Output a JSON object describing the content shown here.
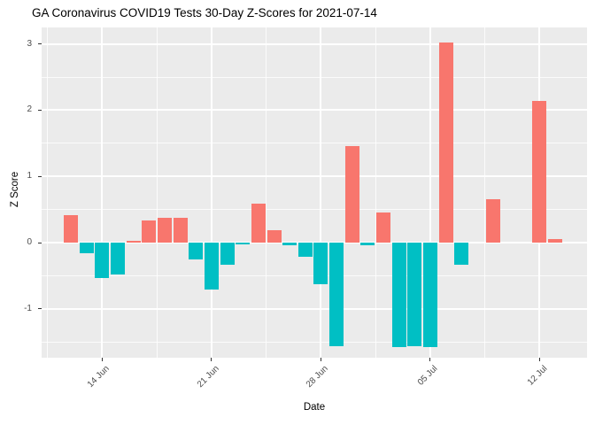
{
  "figure": {
    "title": "GA Coronavirus COVID19 Tests 30-Day Z-Scores for 2021-07-14"
  },
  "chart_data": {
    "type": "bar",
    "title": "GA Coronavirus COVID19 Tests 30-Day Z-Scores for 2021-07-14",
    "xlabel": "Date",
    "ylabel": "Z Score",
    "x": [
      "2021-06-12",
      "2021-06-13",
      "2021-06-14",
      "2021-06-15",
      "2021-06-16",
      "2021-06-17",
      "2021-06-18",
      "2021-06-19",
      "2021-06-20",
      "2021-06-21",
      "2021-06-22",
      "2021-06-23",
      "2021-06-24",
      "2021-06-25",
      "2021-06-26",
      "2021-06-27",
      "2021-06-28",
      "2021-06-29",
      "2021-06-30",
      "2021-07-01",
      "2021-07-02",
      "2021-07-03",
      "2021-07-04",
      "2021-07-05",
      "2021-07-06",
      "2021-07-07",
      "2021-07-08",
      "2021-07-09",
      "2021-07-10",
      "2021-07-11",
      "2021-07-12",
      "2021-07-13"
    ],
    "values": [
      0.42,
      -0.16,
      -0.54,
      -0.48,
      0.03,
      0.33,
      0.38,
      0.37,
      -0.26,
      -0.71,
      -0.33,
      -0.03,
      0.59,
      0.19,
      -0.04,
      -0.21,
      -0.63,
      -1.57,
      1.46,
      -0.04,
      0.45,
      -1.58,
      -1.57,
      -1.58,
      3.02,
      -0.34,
      0.0,
      0.66,
      0.0,
      0.0,
      2.14,
      0.06
    ],
    "x_ticks": {
      "labels": [
        "14 Jun",
        "21 Jun",
        "28 Jun",
        "05 Jul",
        "12 Jul"
      ],
      "day_index": [
        2,
        9,
        16,
        23,
        30
      ]
    },
    "x_minor_day_index": [
      -1.5,
      5.5,
      12.5,
      19.5,
      26.5
    ],
    "y_ticks": {
      "labels": [
        "3",
        "2",
        "1",
        "0",
        "-1"
      ],
      "values": [
        3,
        2,
        1,
        0,
        -1
      ]
    },
    "y_minor": [
      2.5,
      1.5,
      0.5,
      -0.5,
      -1.5
    ],
    "ylim": [
      -1.74,
      3.25
    ],
    "grid": "on",
    "legend_position": "none",
    "colors": {
      "positive_bar": "#F8766D",
      "negative_bar": "#00BFC4",
      "panel_background": "#EBEBEB",
      "gridline": "#FFFFFF",
      "tick_text": "#4D4D4D",
      "axis_title_text": "#000000",
      "title_text": "#000000"
    }
  }
}
